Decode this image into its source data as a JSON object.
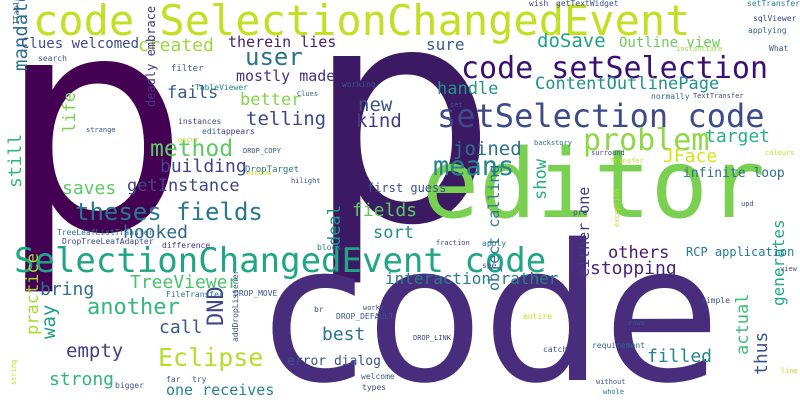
{
  "words": [
    {
      "text": "p",
      "color": "#440154"
    },
    {
      "text": "p",
      "color": "#3b1a63"
    },
    {
      "text": "code",
      "color": "#472d7b"
    },
    {
      "text": "editor",
      "color": "#7ad151"
    },
    {
      "text": "code SelectionChangedEvent",
      "color": "#c2df23"
    },
    {
      "text": "SelectionChangedEvent code",
      "color": "#21a685"
    },
    {
      "text": "setSelection code",
      "color": "#3e4a89"
    },
    {
      "text": "code setSelection",
      "color": "#3b0f70"
    },
    {
      "text": "problem",
      "color": "#8fd744"
    },
    {
      "text": "means",
      "color": "#26828e"
    },
    {
      "text": "theses fields",
      "color": "#2a788e"
    },
    {
      "text": "Eclipse",
      "color": "#b5de2b"
    },
    {
      "text": "user",
      "color": "#2c728e"
    },
    {
      "text": "method",
      "color": "#5ec962"
    },
    {
      "text": "another",
      "color": "#35b779"
    },
    {
      "text": "new",
      "color": "#3b528b"
    },
    {
      "text": "kind",
      "color": "#443983"
    },
    {
      "text": "created",
      "color": "#9bd93c"
    },
    {
      "text": "doSave",
      "color": "#1fa187"
    },
    {
      "text": "ContentOutlinePage",
      "color": "#21918c"
    },
    {
      "text": "telling",
      "color": "#3e4989"
    },
    {
      "text": "joined",
      "color": "#2d708e"
    },
    {
      "text": "fails",
      "color": "#38598c"
    },
    {
      "text": "better",
      "color": "#84d44b"
    },
    {
      "text": "building",
      "color": "#414487"
    },
    {
      "text": "getInstance",
      "color": "#404688"
    },
    {
      "text": "saves",
      "color": "#5ec962"
    },
    {
      "text": "hooked",
      "color": "#31668e"
    },
    {
      "text": "therein lies",
      "color": "#481c6e"
    },
    {
      "text": "mostly made",
      "color": "#46327e"
    },
    {
      "text": "sure",
      "color": "#365c8d"
    },
    {
      "text": "Outline view",
      "color": "#6ccd5a"
    },
    {
      "text": "handle",
      "color": "#20928c"
    },
    {
      "text": "target",
      "color": "#29af7f"
    },
    {
      "text": "JFace",
      "color": "#d8e219"
    },
    {
      "text": "show",
      "color": "#25ab82"
    },
    {
      "text": "infinite loop",
      "color": "#2e6e8e"
    },
    {
      "text": "DND",
      "color": "#3f4788"
    },
    {
      "text": "way",
      "color": "#1f9e89"
    },
    {
      "text": "empty",
      "color": "#433e85"
    },
    {
      "text": "strong",
      "color": "#31b57b"
    },
    {
      "text": "practice",
      "color": "#a5db36"
    },
    {
      "text": "TreeViewer",
      "color": "#4ac16d"
    },
    {
      "text": "call",
      "color": "#39568c"
    },
    {
      "text": "bring",
      "color": "#2f6c8e"
    },
    {
      "text": "best",
      "color": "#2c738e"
    },
    {
      "text": "one receives",
      "color": "#25848e"
    },
    {
      "text": "stopping",
      "color": "#482677"
    },
    {
      "text": "others",
      "color": "#48186a"
    },
    {
      "text": "filled",
      "color": "#24868e"
    },
    {
      "text": "actual",
      "color": "#3dbc74"
    },
    {
      "text": "thus",
      "color": "#3b528b"
    },
    {
      "text": "generates",
      "color": "#22a884"
    },
    {
      "text": "interaction rather",
      "color": "#287c8e"
    },
    {
      "text": "sort",
      "color": "#23898e"
    },
    {
      "text": "deal",
      "color": "#21908d"
    },
    {
      "text": "fields",
      "color": "#5ec962"
    },
    {
      "text": "either one",
      "color": "#453781"
    },
    {
      "text": "object calling",
      "color": "#2a768e"
    },
    {
      "text": "error dialog",
      "color": "#3b528b"
    },
    {
      "text": "mandatory",
      "color": "#2c728e"
    },
    {
      "text": "life",
      "color": "#7ad151"
    },
    {
      "text": "still",
      "color": "#35b779"
    },
    {
      "text": "Clues welcomed",
      "color": "#3e4a89"
    },
    {
      "text": "deadly embrace",
      "color": "#453882"
    },
    {
      "text": "RCP application",
      "color": "#287d8e"
    },
    {
      "text": "first guess",
      "color": "#3b518b"
    },
    {
      "text": "TableViewer",
      "color": "#25858e"
    },
    {
      "text": "filter",
      "color": "#365d8d"
    },
    {
      "text": "instances",
      "color": "#3f4889"
    },
    {
      "text": "edit",
      "color": "#31688e"
    },
    {
      "text": "appears",
      "color": "#46327e"
    },
    {
      "text": "DROP_COPY",
      "color": "#3b528b"
    },
    {
      "text": "DropTarget",
      "color": "#2d718e"
    },
    {
      "text": "occur",
      "color": "#c2df23"
    },
    {
      "text": "strange",
      "color": "#3b528b"
    },
    {
      "text": "wish",
      "color": "#414487"
    },
    {
      "text": "getTextWidget",
      "color": "#3b528b"
    },
    {
      "text": "setTransfer",
      "color": "#26828e"
    },
    {
      "text": "sqlViewer",
      "color": "#3e4989"
    },
    {
      "text": "applying",
      "color": "#31688e"
    },
    {
      "text": "instantiate",
      "color": "#9bd93c"
    },
    {
      "text": "working",
      "color": "#3b528b"
    },
    {
      "text": "Clues",
      "color": "#31688e"
    },
    {
      "text": "normally",
      "color": "#31688e"
    },
    {
      "text": "TextTransfer",
      "color": "#3f4788"
    },
    {
      "text": "backstory",
      "color": "#2c728e"
    },
    {
      "text": "surround",
      "color": "#414487"
    },
    {
      "text": "Transfer",
      "color": "#c2df23"
    },
    {
      "text": "ITableColorProvider",
      "color": "#38598c"
    },
    {
      "text": "search",
      "color": "#3b528b"
    },
    {
      "text": "TreeLeafListTransfer",
      "color": "#2c728e"
    },
    {
      "text": "DropTreeLeafAdapter",
      "color": "#3e4989"
    },
    {
      "text": "difference",
      "color": "#46327e"
    },
    {
      "text": "DROP_MOVE",
      "color": "#3b528b"
    },
    {
      "text": "FileTransfer",
      "color": "#2c728e"
    },
    {
      "text": "addDropListener",
      "color": "#3b528b"
    },
    {
      "text": "DROP_DEFAULT",
      "color": "#3b528b"
    },
    {
      "text": "DROP_LINK",
      "color": "#3e4989"
    },
    {
      "text": "block",
      "color": "#2c728e"
    },
    {
      "text": "fraction",
      "color": "#414487"
    },
    {
      "text": "apply",
      "color": "#2c728e"
    },
    {
      "text": "window",
      "color": "#c2df23"
    },
    {
      "text": "hilight",
      "color": "#3b528b"
    },
    {
      "text": "catch",
      "color": "#3b528b"
    },
    {
      "text": "requirement",
      "color": "#31688e"
    },
    {
      "text": "simple",
      "color": "#3b528b"
    },
    {
      "text": "without",
      "color": "#3b528b"
    },
    {
      "text": "whole",
      "color": "#2c728e"
    },
    {
      "text": "welcome",
      "color": "#3b528b"
    },
    {
      "text": "entire",
      "color": "#c2df23"
    },
    {
      "text": "works",
      "color": "#3b528b"
    },
    {
      "text": "types",
      "color": "#3b528b"
    },
    {
      "text": "far",
      "color": "#3b528b"
    },
    {
      "text": "try",
      "color": "#3b528b"
    },
    {
      "text": "bigger",
      "color": "#3b528b"
    },
    {
      "text": "string",
      "color": "#c2df23"
    },
    {
      "text": "colours",
      "color": "#c2df23"
    },
    {
      "text": "What",
      "color": "#3b528b"
    },
    {
      "text": "upd",
      "color": "#3b528b"
    },
    {
      "text": "pre",
      "color": "#3b528b"
    },
    {
      "text": "view",
      "color": "#3b528b"
    },
    {
      "text": "rows",
      "color": "#3b528b"
    },
    {
      "text": "see",
      "color": "#3b528b"
    },
    {
      "text": "exception",
      "color": "#c2df23"
    },
    {
      "text": "line",
      "color": "#c2df23"
    },
    {
      "text": "br",
      "color": "#3b528b"
    },
    {
      "text": "set",
      "color": "#3b528b"
    }
  ]
}
